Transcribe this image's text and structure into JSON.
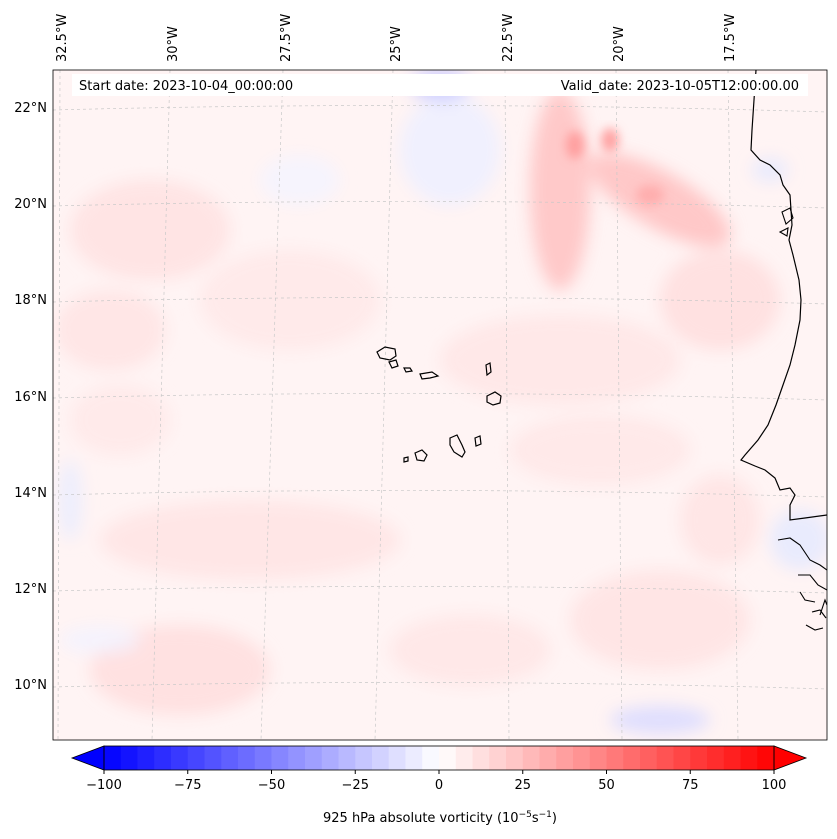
{
  "map": {
    "header": {
      "start_date": "Start date: 2023-10-04_00:00:00",
      "valid_date": "Valid_date: 2023-10-05T12:00:00.00"
    },
    "lon_labels": [
      "32.5°W",
      "30°W",
      "27.5°W",
      "25°W",
      "22.5°W",
      "20°W",
      "17.5°W"
    ],
    "lat_labels": [
      "22°N",
      "20°N",
      "18°N",
      "16°N",
      "14°N",
      "12°N",
      "10°N"
    ],
    "colorbar": {
      "tick_labels": [
        "−100",
        "−75",
        "−50",
        "−25",
        "0",
        "25",
        "50",
        "75",
        "100"
      ],
      "label_main": "925 hPa absolute vorticity (10",
      "label_exp1": "−5",
      "label_mid": "s",
      "label_exp2": "−1",
      "label_end": ")",
      "min": -100,
      "max": 100,
      "colors": {
        "low": "#0000ff",
        "mid": "#ffffff",
        "high": "#ff0000"
      }
    },
    "colors": {
      "background_field": "#fff4f4",
      "coastline": "#000000",
      "gridline": "#c8c8c8"
    }
  }
}
